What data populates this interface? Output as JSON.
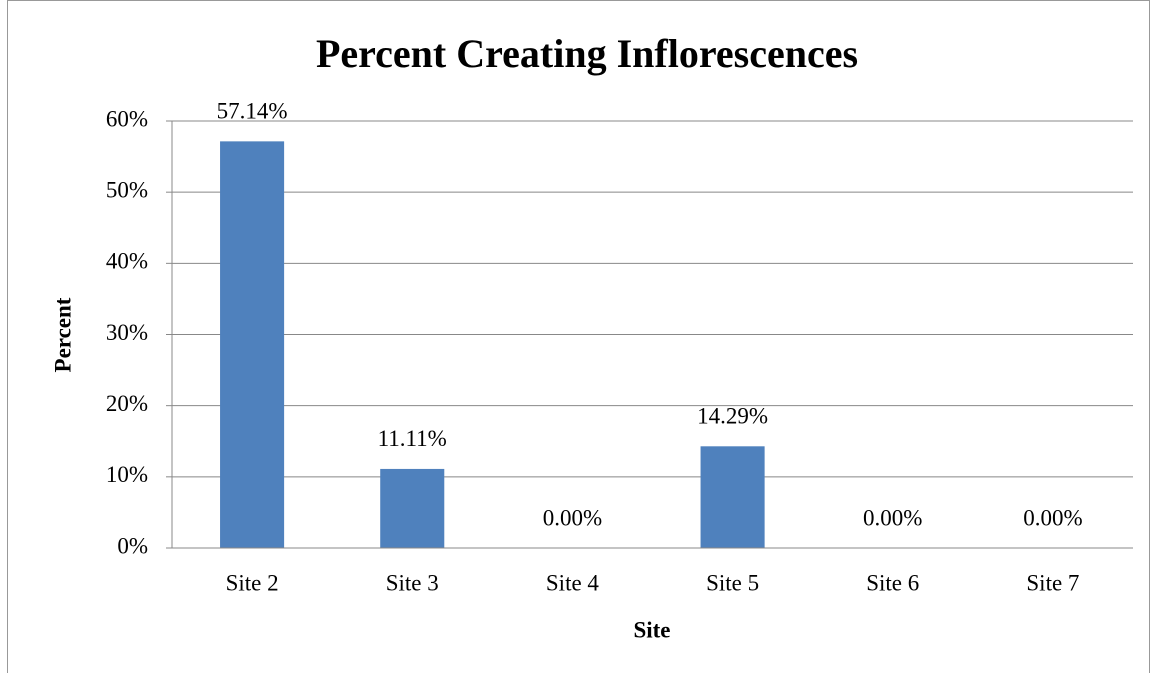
{
  "chart_data": {
    "type": "bar",
    "title": "Percent Creating Inflorescences",
    "x_label": "Site",
    "y_label": "Percent",
    "categories": [
      "Site 2",
      "Site 3",
      "Site 4",
      "Site 5",
      "Site 6",
      "Site 7"
    ],
    "values": [
      57.14,
      11.11,
      0,
      14.29,
      0,
      0
    ],
    "value_labels": [
      "57.14%",
      "11.11%",
      "0.00%",
      "14.29%",
      "0.00%",
      "0.00%"
    ],
    "color": "#4f81bd",
    "ylim": [
      0,
      60
    ],
    "yticks": [
      {
        "value": 0,
        "label": "0%"
      },
      {
        "value": 10,
        "label": "10%"
      },
      {
        "value": 20,
        "label": "20%"
      },
      {
        "value": 30,
        "label": "30%"
      },
      {
        "value": 40,
        "label": "40%"
      },
      {
        "value": 50,
        "label": "50%"
      },
      {
        "value": 60,
        "label": "60%"
      }
    ],
    "grid": true
  }
}
